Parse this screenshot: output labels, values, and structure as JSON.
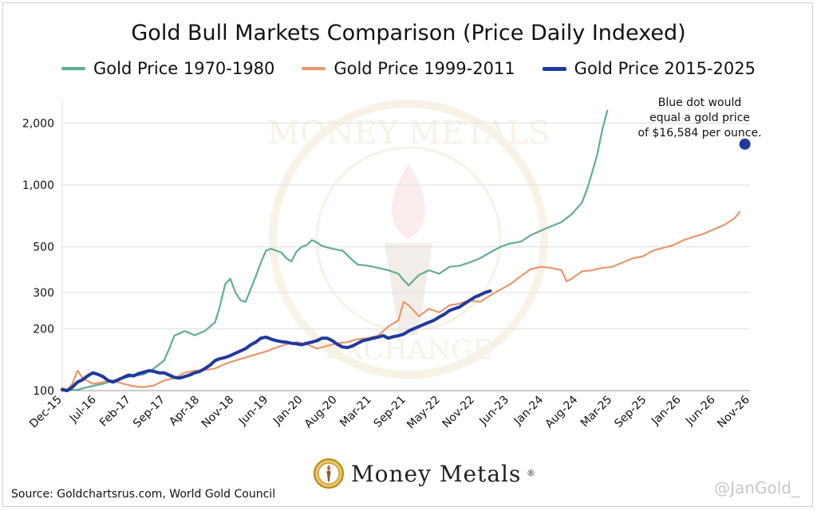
{
  "title": "Gold Bull Markets Comparison (Price Daily Indexed)",
  "legend": [
    {
      "label": "Gold Price 1970-1980",
      "color": "#5fae8e"
    },
    {
      "label": "Gold Price 1999-2011",
      "color": "#e8976b"
    },
    {
      "label": "Gold Price 2015-2025",
      "color": "#1f3a9e"
    }
  ],
  "annotation": {
    "line1": "Blue dot would",
    "line2": "equal a gold price",
    "line3": "of $16,584 per ounce."
  },
  "source": "Source: Goldchartsrus.com, World Gold Council",
  "handle": "@JanGold_",
  "brand": {
    "name": "Money Metals",
    "reg": "®",
    "watermark_top": "MONEY METALS",
    "watermark_bottom": "EXCHANGE"
  },
  "chart_data": {
    "type": "line",
    "title": "Gold Bull Markets Comparison (Price Daily Indexed)",
    "y_scale": "log",
    "ylim": [
      100,
      2600
    ],
    "y_ticks": [
      100,
      200,
      300,
      500,
      1000,
      2000
    ],
    "y_tick_labels": [
      "100",
      "200",
      "300",
      "500",
      "1,000",
      "2,000"
    ],
    "x_tick_labels": [
      "Dec-15",
      "Jul-16",
      "Feb-17",
      "Sep-17",
      "Apr-18",
      "Nov-18",
      "Jun-19",
      "Jan-20",
      "Aug-20",
      "Mar-21",
      "Sep-21",
      "May-22",
      "Nov-22",
      "Jun-23",
      "Jan-24",
      "Aug-24",
      "Mar-25",
      "Sep-25",
      "Jan-26",
      "Jun-26",
      "Nov-26"
    ],
    "x_range_months": [
      0,
      135
    ],
    "grid": "horizontal",
    "legend_position": "top",
    "series": [
      {
        "name": "Gold Price 1970-1980",
        "color": "#5fae8e",
        "points": [
          [
            0,
            100
          ],
          [
            3,
            101
          ],
          [
            5,
            104
          ],
          [
            8,
            108
          ],
          [
            10,
            112
          ],
          [
            12,
            115
          ],
          [
            14,
            118
          ],
          [
            16,
            120
          ],
          [
            18,
            128
          ],
          [
            20,
            140
          ],
          [
            21,
            160
          ],
          [
            22,
            185
          ],
          [
            24,
            195
          ],
          [
            26,
            186
          ],
          [
            28,
            195
          ],
          [
            30,
            215
          ],
          [
            31,
            260
          ],
          [
            32,
            330
          ],
          [
            33,
            350
          ],
          [
            34,
            300
          ],
          [
            35,
            275
          ],
          [
            36,
            270
          ],
          [
            38,
            360
          ],
          [
            39,
            420
          ],
          [
            40,
            480
          ],
          [
            41,
            490
          ],
          [
            43,
            470
          ],
          [
            44,
            440
          ],
          [
            45,
            425
          ],
          [
            46,
            475
          ],
          [
            47,
            500
          ],
          [
            48,
            510
          ],
          [
            49,
            540
          ],
          [
            50,
            525
          ],
          [
            51,
            505
          ],
          [
            53,
            490
          ],
          [
            55,
            480
          ],
          [
            56,
            455
          ],
          [
            57,
            430
          ],
          [
            58,
            410
          ],
          [
            60,
            405
          ],
          [
            62,
            395
          ],
          [
            64,
            385
          ],
          [
            66,
            370
          ],
          [
            67,
            345
          ],
          [
            68,
            325
          ],
          [
            70,
            365
          ],
          [
            72,
            385
          ],
          [
            74,
            370
          ],
          [
            76,
            400
          ],
          [
            78,
            405
          ],
          [
            80,
            420
          ],
          [
            82,
            440
          ],
          [
            84,
            470
          ],
          [
            86,
            500
          ],
          [
            88,
            520
          ],
          [
            90,
            530
          ],
          [
            92,
            570
          ],
          [
            94,
            600
          ],
          [
            96,
            630
          ],
          [
            98,
            660
          ],
          [
            100,
            720
          ],
          [
            102,
            820
          ],
          [
            103,
            950
          ],
          [
            104,
            1150
          ],
          [
            105,
            1400
          ],
          [
            106,
            1850
          ],
          [
            107,
            2300
          ]
        ]
      },
      {
        "name": "Gold Price 1999-2011",
        "color": "#e8976b",
        "points": [
          [
            0,
            103
          ],
          [
            1,
            101
          ],
          [
            2,
            108
          ],
          [
            3,
            125
          ],
          [
            4,
            115
          ],
          [
            6,
            108
          ],
          [
            8,
            110
          ],
          [
            10,
            112
          ],
          [
            12,
            108
          ],
          [
            14,
            105
          ],
          [
            16,
            104
          ],
          [
            18,
            106
          ],
          [
            20,
            112
          ],
          [
            22,
            115
          ],
          [
            24,
            122
          ],
          [
            26,
            125
          ],
          [
            28,
            126
          ],
          [
            30,
            128
          ],
          [
            32,
            135
          ],
          [
            34,
            140
          ],
          [
            36,
            145
          ],
          [
            38,
            150
          ],
          [
            40,
            155
          ],
          [
            42,
            162
          ],
          [
            44,
            168
          ],
          [
            46,
            172
          ],
          [
            48,
            168
          ],
          [
            50,
            160
          ],
          [
            52,
            165
          ],
          [
            54,
            170
          ],
          [
            56,
            172
          ],
          [
            58,
            178
          ],
          [
            60,
            180
          ],
          [
            62,
            185
          ],
          [
            64,
            205
          ],
          [
            66,
            220
          ],
          [
            67,
            270
          ],
          [
            68,
            260
          ],
          [
            69,
            245
          ],
          [
            70,
            230
          ],
          [
            72,
            250
          ],
          [
            74,
            240
          ],
          [
            76,
            260
          ],
          [
            78,
            265
          ],
          [
            80,
            275
          ],
          [
            82,
            270
          ],
          [
            84,
            290
          ],
          [
            86,
            310
          ],
          [
            88,
            330
          ],
          [
            90,
            360
          ],
          [
            92,
            390
          ],
          [
            94,
            400
          ],
          [
            96,
            395
          ],
          [
            98,
            385
          ],
          [
            99,
            340
          ],
          [
            100,
            350
          ],
          [
            102,
            380
          ],
          [
            104,
            385
          ],
          [
            106,
            395
          ],
          [
            108,
            400
          ],
          [
            110,
            420
          ],
          [
            112,
            440
          ],
          [
            114,
            450
          ],
          [
            116,
            480
          ],
          [
            118,
            495
          ],
          [
            120,
            510
          ],
          [
            122,
            540
          ],
          [
            124,
            560
          ],
          [
            126,
            580
          ],
          [
            128,
            610
          ],
          [
            130,
            640
          ],
          [
            132,
            690
          ],
          [
            133,
            740
          ]
        ]
      },
      {
        "name": "Gold Price 2015-2025",
        "color": "#1f3a9e",
        "points": [
          [
            0,
            101
          ],
          [
            1,
            100
          ],
          [
            2,
            104
          ],
          [
            3,
            110
          ],
          [
            4,
            113
          ],
          [
            5,
            118
          ],
          [
            6,
            122
          ],
          [
            7,
            120
          ],
          [
            8,
            117
          ],
          [
            9,
            112
          ],
          [
            10,
            110
          ],
          [
            11,
            113
          ],
          [
            12,
            116
          ],
          [
            13,
            119
          ],
          [
            14,
            118
          ],
          [
            15,
            121
          ],
          [
            16,
            123
          ],
          [
            17,
            125
          ],
          [
            18,
            124
          ],
          [
            19,
            122
          ],
          [
            20,
            122
          ],
          [
            21,
            119
          ],
          [
            22,
            116
          ],
          [
            23,
            115
          ],
          [
            24,
            117
          ],
          [
            25,
            119
          ],
          [
            26,
            122
          ],
          [
            27,
            124
          ],
          [
            28,
            128
          ],
          [
            29,
            133
          ],
          [
            30,
            140
          ],
          [
            31,
            143
          ],
          [
            32,
            145
          ],
          [
            33,
            148
          ],
          [
            34,
            152
          ],
          [
            35,
            156
          ],
          [
            36,
            160
          ],
          [
            37,
            167
          ],
          [
            38,
            172
          ],
          [
            39,
            180
          ],
          [
            40,
            182
          ],
          [
            41,
            178
          ],
          [
            42,
            175
          ],
          [
            43,
            173
          ],
          [
            44,
            172
          ],
          [
            45,
            170
          ],
          [
            46,
            169
          ],
          [
            47,
            167
          ],
          [
            48,
            170
          ],
          [
            49,
            172
          ],
          [
            50,
            175
          ],
          [
            51,
            180
          ],
          [
            52,
            180
          ],
          [
            53,
            175
          ],
          [
            54,
            168
          ],
          [
            55,
            163
          ],
          [
            56,
            162
          ],
          [
            57,
            165
          ],
          [
            58,
            170
          ],
          [
            59,
            175
          ],
          [
            60,
            177
          ],
          [
            61,
            180
          ],
          [
            62,
            182
          ],
          [
            63,
            185
          ],
          [
            64,
            180
          ],
          [
            65,
            183
          ],
          [
            66,
            185
          ],
          [
            67,
            188
          ],
          [
            68,
            195
          ],
          [
            69,
            200
          ],
          [
            70,
            205
          ],
          [
            71,
            210
          ],
          [
            72,
            215
          ],
          [
            73,
            220
          ],
          [
            74,
            228
          ],
          [
            75,
            235
          ],
          [
            76,
            245
          ],
          [
            77,
            250
          ],
          [
            78,
            255
          ],
          [
            79,
            265
          ],
          [
            80,
            275
          ],
          [
            81,
            285
          ],
          [
            82,
            292
          ],
          [
            83,
            300
          ],
          [
            84,
            305
          ]
        ]
      }
    ],
    "highlight_point": {
      "x": 134,
      "y": 1580,
      "color": "#1f3a9e"
    }
  }
}
